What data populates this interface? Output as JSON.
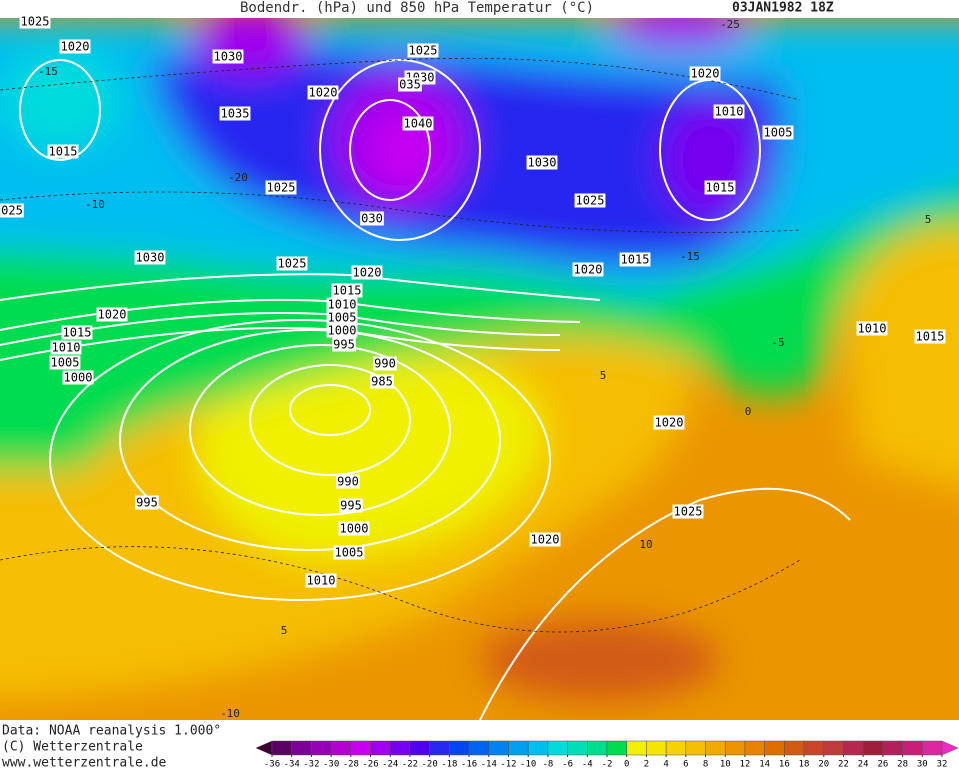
{
  "header": {
    "title": "Bodendr. (hPa) und 850 hPa Temperatur (°C)",
    "date": "03JAN1982 18Z"
  },
  "footer": {
    "source": "Data: NOAA reanalysis 1.000°",
    "copyright": "(C) Wetterzentrale",
    "url": "www.wetterzentrale.de"
  },
  "isobar_labels": [
    "1025",
    "1020",
    "1030",
    "1035",
    "1015",
    "025",
    "1030",
    "1020",
    "1015",
    "1010",
    "1005",
    "1000",
    "1025",
    "1025",
    "1020",
    "1025",
    "1030",
    "035",
    "1040",
    "1030",
    "030",
    "1025",
    "1020",
    "1015",
    "1020",
    "1015",
    "1010",
    "1005",
    "1000",
    "995",
    "990",
    "985",
    "990",
    "995",
    "1000",
    "1005",
    "1010",
    "995",
    "1020",
    "1025",
    "1020",
    "1020",
    "1010",
    "1005",
    "1015",
    "1010",
    "1015"
  ],
  "temperature_labels": [
    "-15",
    "-20",
    "-10",
    "5",
    "0",
    "10",
    "5",
    "-10",
    "5",
    "-5",
    "-15",
    "-25"
  ],
  "legend": {
    "ticks": [
      -36,
      -34,
      -32,
      -30,
      -28,
      -26,
      -24,
      -22,
      -20,
      -18,
      -16,
      -14,
      -12,
      -10,
      -8,
      -6,
      -4,
      -2,
      0,
      2,
      4,
      6,
      8,
      10,
      12,
      14,
      16,
      18,
      20,
      22,
      24,
      26,
      28,
      30,
      32
    ],
    "colors": [
      "#3c0032",
      "#5a0064",
      "#7a0096",
      "#9600b4",
      "#b400d2",
      "#c800f0",
      "#a000f0",
      "#7800f0",
      "#5000f0",
      "#2828f0",
      "#0046f0",
      "#0064f0",
      "#0082f0",
      "#00a0f0",
      "#00bef0",
      "#00dcdc",
      "#00dcb4",
      "#00dc8c",
      "#00dc50",
      "#f0f000",
      "#f5e600",
      "#f5d200",
      "#f5be00",
      "#f0aa00",
      "#eb9600",
      "#e68200",
      "#dc6e00",
      "#d25a14",
      "#c84628",
      "#be3c3c",
      "#b42850",
      "#a01e3c",
      "#b41e5a",
      "#c81e78",
      "#dc28a0",
      "#f028c8"
    ]
  }
}
